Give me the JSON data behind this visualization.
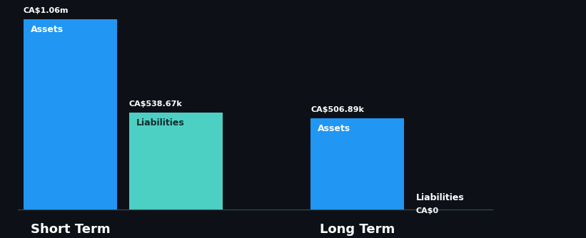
{
  "background_color": "#0d1117",
  "short_term": {
    "assets_value": 1060000,
    "liabilities_value": 538670,
    "assets_label": "CA$1.06m",
    "liabilities_label": "CA$538.67k",
    "assets_color": "#2196f3",
    "liabilities_color": "#4dd0c4",
    "bar_label_assets": "Assets",
    "bar_label_liabilities": "Liabilities",
    "x_label": "Short Term"
  },
  "long_term": {
    "assets_value": 506890,
    "liabilities_value": 0,
    "assets_label": "CA$506.89k",
    "liabilities_label": "CA$0",
    "assets_color": "#2196f3",
    "bar_label_assets": "Assets",
    "bar_label_liabilities": "Liabilities",
    "x_label": "Long Term"
  },
  "y_max": 1060000,
  "text_color": "#ffffff"
}
